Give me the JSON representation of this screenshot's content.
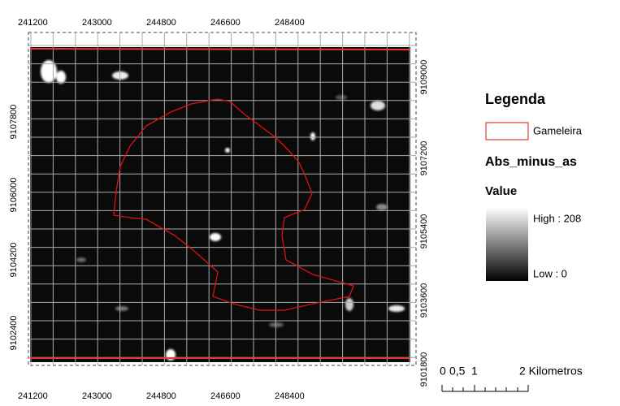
{
  "map": {
    "top_labels": [
      "241200",
      "243000",
      "244800",
      "246600",
      "248400"
    ],
    "bottom_labels": [
      "241200",
      "243000",
      "244800",
      "246600",
      "248400"
    ],
    "left_labels": [
      "9102400",
      "9104200",
      "9106000",
      "9107800"
    ],
    "right_labels": [
      "9101800",
      "9103600",
      "9105400",
      "9107200",
      "9109000"
    ]
  },
  "legend": {
    "title": "Legenda",
    "boundary": "Gameleira",
    "layer": "Abs_minus_as",
    "field": "Value",
    "high": "High : 208",
    "low": "Low : 0"
  },
  "scale_bar": {
    "labels": [
      "0",
      "0,5",
      "1",
      "2 Kilometros"
    ]
  }
}
